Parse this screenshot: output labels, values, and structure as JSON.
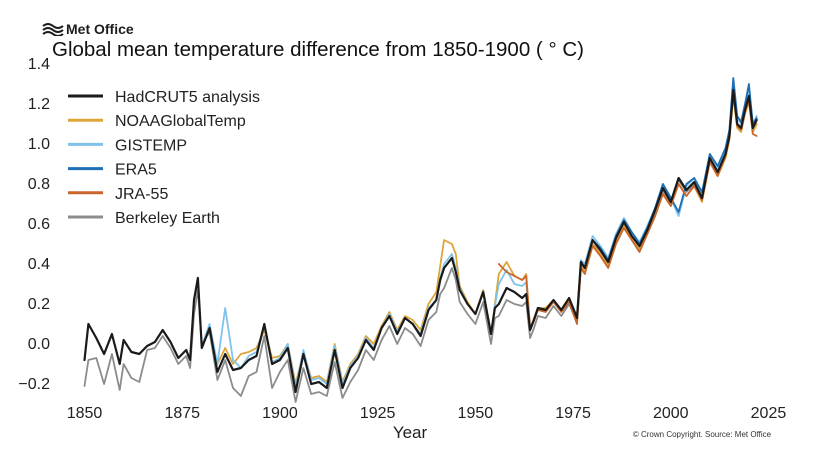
{
  "brand": {
    "name": "Met Office"
  },
  "chart_data": {
    "type": "line",
    "title": "Global mean temperature difference from 1850-1900 ( ° C)",
    "xlabel": "Year",
    "ylabel": "",
    "xlim": [
      1845,
      2030
    ],
    "ylim": [
      -0.27,
      1.42
    ],
    "xticks": [
      1850,
      1875,
      1900,
      1925,
      1950,
      1975,
      2000,
      2025
    ],
    "yticks": [
      -0.2,
      0.0,
      0.2,
      0.4,
      0.6,
      0.8,
      1.0,
      1.2,
      1.4
    ],
    "ytick_labels": [
      "−0.2",
      "0.0",
      "0.2",
      "0.4",
      "0.6",
      "0.8",
      "1.0",
      "1.2",
      "1.4"
    ],
    "grid": false,
    "legend_position": "top-left",
    "source": "© Crown Copyright. Source: Met Office",
    "anchor_years": [
      1850,
      1851,
      1853,
      1855,
      1857,
      1859,
      1860,
      1862,
      1864,
      1866,
      1868,
      1870,
      1872,
      1874,
      1876,
      1877,
      1878,
      1879,
      1880,
      1882,
      1884,
      1886,
      1888,
      1890,
      1892,
      1894,
      1896,
      1898,
      1900,
      1902,
      1904,
      1906,
      1908,
      1910,
      1912,
      1914,
      1916,
      1918,
      1920,
      1922,
      1924,
      1926,
      1928,
      1930,
      1932,
      1934,
      1936,
      1938,
      1940,
      1941,
      1942,
      1944,
      1945,
      1946,
      1948,
      1950,
      1952,
      1954,
      1955,
      1956,
      1958,
      1960,
      1962,
      1963,
      1964,
      1965,
      1966,
      1968,
      1970,
      1972,
      1974,
      1976,
      1977,
      1978,
      1980,
      1982,
      1984,
      1986,
      1988,
      1990,
      1992,
      1994,
      1996,
      1998,
      2000,
      2002,
      2004,
      2006,
      2008,
      2010,
      2012,
      2014,
      2015,
      2016,
      2017,
      2018,
      2019,
      2020,
      2021,
      2022
    ],
    "series": [
      {
        "name": "HadCRUT5 analysis",
        "color": "#1a1a1a",
        "width": 2.2,
        "values": [
          -0.08,
          0.1,
          0.03,
          -0.05,
          0.05,
          -0.1,
          0.02,
          -0.04,
          -0.05,
          -0.01,
          0.01,
          0.07,
          0.01,
          -0.07,
          -0.03,
          -0.08,
          0.22,
          0.33,
          -0.02,
          0.08,
          -0.14,
          -0.05,
          -0.13,
          -0.12,
          -0.08,
          -0.06,
          0.1,
          -0.1,
          -0.08,
          -0.02,
          -0.24,
          -0.05,
          -0.2,
          -0.19,
          -0.22,
          -0.03,
          -0.22,
          -0.12,
          -0.07,
          0.02,
          -0.03,
          0.08,
          0.14,
          0.05,
          0.13,
          0.1,
          0.04,
          0.17,
          0.22,
          0.32,
          0.38,
          0.43,
          0.36,
          0.27,
          0.2,
          0.15,
          0.26,
          0.05,
          0.18,
          0.2,
          0.28,
          0.26,
          0.23,
          0.25,
          0.07,
          0.12,
          0.18,
          0.17,
          0.22,
          0.17,
          0.23,
          0.13,
          0.41,
          0.38,
          0.52,
          0.47,
          0.41,
          0.53,
          0.61,
          0.54,
          0.49,
          0.57,
          0.67,
          0.78,
          0.71,
          0.83,
          0.77,
          0.81,
          0.73,
          0.93,
          0.86,
          0.95,
          1.04,
          1.27,
          1.1,
          1.08,
          1.17,
          1.24,
          1.08,
          1.12
        ]
      },
      {
        "name": "NOAAGlobalTemp",
        "color": "#e0a53a",
        "width": 1.8,
        "values": [
          null,
          null,
          null,
          null,
          null,
          null,
          null,
          null,
          null,
          null,
          null,
          null,
          null,
          null,
          null,
          null,
          null,
          null,
          null,
          null,
          -0.1,
          -0.02,
          -0.1,
          -0.05,
          -0.04,
          -0.02,
          0.07,
          -0.07,
          -0.06,
          0.0,
          -0.2,
          -0.04,
          -0.17,
          -0.16,
          -0.19,
          0.0,
          -0.19,
          -0.1,
          -0.05,
          0.04,
          0.0,
          0.09,
          0.16,
          0.07,
          0.14,
          0.12,
          0.07,
          0.2,
          0.26,
          0.39,
          0.52,
          0.5,
          0.45,
          0.29,
          0.21,
          0.15,
          0.27,
          0.05,
          0.2,
          0.35,
          0.41,
          0.34,
          0.32,
          0.35,
          0.08,
          0.13,
          0.18,
          0.18,
          0.22,
          0.16,
          0.22,
          0.12,
          0.39,
          0.36,
          0.5,
          0.45,
          0.39,
          0.51,
          0.59,
          0.53,
          0.47,
          0.55,
          0.64,
          0.75,
          0.69,
          0.8,
          0.74,
          0.79,
          0.71,
          0.91,
          0.84,
          0.93,
          1.02,
          1.24,
          1.08,
          1.06,
          1.15,
          1.21,
          1.06,
          1.1
        ]
      },
      {
        "name": "GISTEMP",
        "color": "#7ec3ec",
        "width": 1.8,
        "values": [
          null,
          null,
          null,
          null,
          null,
          null,
          null,
          null,
          null,
          null,
          null,
          null,
          null,
          null,
          null,
          null,
          null,
          null,
          -0.01,
          0.1,
          -0.1,
          0.18,
          -0.08,
          -0.12,
          -0.06,
          -0.04,
          0.09,
          -0.09,
          -0.07,
          0.0,
          -0.22,
          -0.03,
          -0.18,
          -0.17,
          -0.2,
          -0.01,
          -0.2,
          -0.11,
          -0.06,
          0.03,
          -0.02,
          0.08,
          0.15,
          0.06,
          0.13,
          0.1,
          0.05,
          0.18,
          0.22,
          0.33,
          0.4,
          0.45,
          0.38,
          0.28,
          0.2,
          0.15,
          0.26,
          0.05,
          0.19,
          0.3,
          0.37,
          0.3,
          0.29,
          0.31,
          0.07,
          0.12,
          0.18,
          0.17,
          0.22,
          0.17,
          0.23,
          0.14,
          0.42,
          0.4,
          0.54,
          0.49,
          0.43,
          0.55,
          0.63,
          0.56,
          0.51,
          0.59,
          0.68,
          0.8,
          0.73,
          0.64,
          0.79,
          0.83,
          0.75,
          0.95,
          0.88,
          0.97,
          1.06,
          1.31,
          1.13,
          1.1,
          1.19,
          1.27,
          1.1,
          1.14
        ]
      },
      {
        "name": "ERA5",
        "color": "#1f6fb4",
        "width": 1.8,
        "values": [
          null,
          null,
          null,
          null,
          null,
          null,
          null,
          null,
          null,
          null,
          null,
          null,
          null,
          null,
          null,
          null,
          null,
          null,
          null,
          null,
          null,
          null,
          null,
          null,
          null,
          null,
          null,
          null,
          null,
          null,
          null,
          null,
          null,
          null,
          null,
          null,
          null,
          null,
          null,
          null,
          null,
          null,
          null,
          null,
          null,
          null,
          null,
          null,
          null,
          null,
          null,
          null,
          null,
          null,
          null,
          null,
          null,
          null,
          null,
          null,
          null,
          null,
          null,
          null,
          null,
          null,
          null,
          null,
          null,
          null,
          null,
          null,
          null,
          null,
          0.52,
          0.48,
          0.42,
          0.54,
          0.62,
          0.56,
          0.5,
          0.58,
          0.68,
          0.8,
          0.73,
          0.66,
          0.8,
          0.83,
          0.76,
          0.95,
          0.89,
          0.98,
          1.07,
          1.33,
          1.14,
          1.11,
          1.2,
          1.3,
          1.1,
          1.13
        ]
      },
      {
        "name": "JRA-55",
        "color": "#c8662c",
        "width": 1.8,
        "values": [
          null,
          null,
          null,
          null,
          null,
          null,
          null,
          null,
          null,
          null,
          null,
          null,
          null,
          null,
          null,
          null,
          null,
          null,
          null,
          null,
          null,
          null,
          null,
          null,
          null,
          null,
          null,
          null,
          null,
          null,
          null,
          null,
          null,
          null,
          null,
          null,
          null,
          null,
          null,
          null,
          null,
          null,
          null,
          null,
          null,
          null,
          null,
          null,
          null,
          null,
          null,
          null,
          null,
          null,
          null,
          null,
          null,
          null,
          null,
          0.4,
          0.36,
          0.34,
          0.32,
          0.34,
          0.07,
          0.12,
          0.17,
          0.16,
          0.21,
          0.16,
          0.21,
          0.1,
          0.38,
          0.35,
          0.49,
          0.44,
          0.38,
          0.5,
          0.58,
          0.52,
          0.46,
          0.55,
          0.64,
          0.75,
          0.69,
          0.8,
          0.74,
          0.79,
          0.72,
          0.91,
          0.84,
          0.94,
          1.03,
          1.26,
          1.09,
          1.07,
          1.16,
          1.22,
          1.05,
          1.04
        ]
      },
      {
        "name": "Berkeley Earth",
        "color": "#8c8c8c",
        "width": 1.8,
        "values": [
          -0.21,
          -0.08,
          -0.07,
          -0.2,
          -0.05,
          -0.23,
          -0.1,
          -0.17,
          -0.19,
          -0.03,
          -0.02,
          0.04,
          -0.02,
          -0.1,
          -0.06,
          -0.12,
          0.15,
          0.27,
          0.0,
          0.06,
          -0.18,
          -0.08,
          -0.22,
          -0.26,
          -0.16,
          -0.14,
          0.04,
          -0.22,
          -0.14,
          -0.08,
          -0.29,
          -0.12,
          -0.25,
          -0.24,
          -0.26,
          -0.09,
          -0.27,
          -0.19,
          -0.13,
          -0.03,
          -0.08,
          0.02,
          0.09,
          0.0,
          0.08,
          0.05,
          -0.01,
          0.12,
          0.16,
          0.25,
          0.28,
          0.38,
          0.32,
          0.21,
          0.15,
          0.1,
          0.21,
          0.0,
          0.13,
          0.14,
          0.22,
          0.2,
          0.19,
          0.21,
          0.03,
          0.08,
          0.14,
          0.13,
          0.19,
          0.14,
          0.2,
          0.11,
          0.39,
          0.36,
          0.5,
          0.46,
          0.4,
          0.52,
          0.6,
          0.53,
          0.48,
          0.56,
          0.66,
          0.77,
          0.7,
          0.82,
          0.76,
          0.8,
          0.72,
          0.92,
          0.85,
          0.94,
          1.03,
          1.27,
          1.09,
          1.07,
          1.16,
          1.24,
          1.06,
          1.1
        ]
      }
    ]
  }
}
